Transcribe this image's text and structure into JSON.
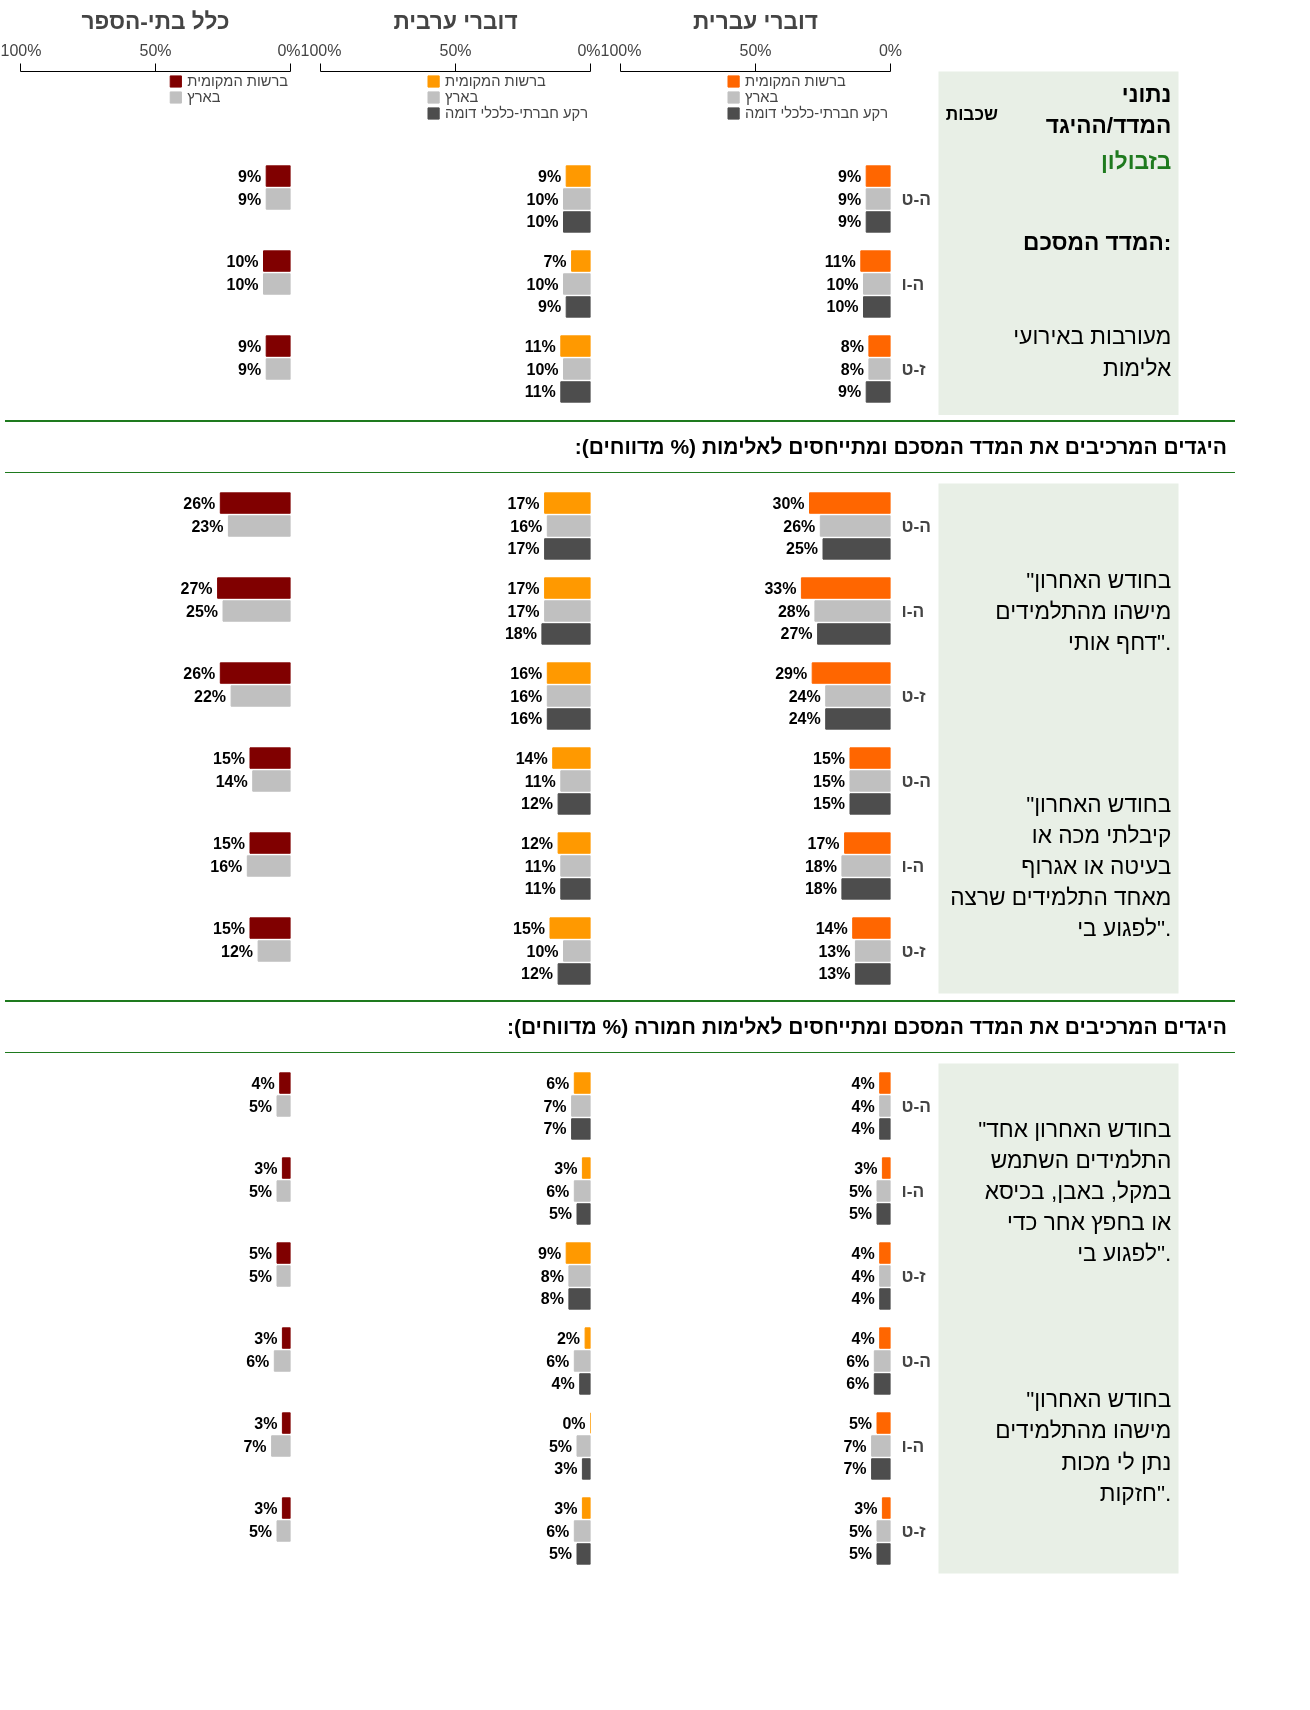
{
  "chart_data": [
    {
      "type": "bar",
      "orientation": "horizontal",
      "title": "דוברי עברית",
      "categories": [
        "ה-ט",
        "ה-ו",
        "ז-ט"
      ],
      "xlim": [
        100,
        0
      ],
      "xticks": [
        {
          "value": 100,
          "label": "100%"
        },
        {
          "value": 50,
          "label": "50%"
        },
        {
          "value": 0,
          "label": "0%"
        }
      ],
      "legend": "top",
      "annotations": [
        "נתוני המדד/ההיגד",
        "בזבולון",
        "שכבות",
        "המדד המסכם:",
        "מעורבות באירועי אלימות"
      ],
      "series": [
        {
          "name": "ברשות המקומית",
          "color": "#ff6600",
          "values": [
            9,
            11,
            8
          ],
          "value_labels": [
            "9%",
            "11%",
            "8%"
          ]
        },
        {
          "name": "בארץ",
          "color": "#c0c0c0",
          "values": [
            9,
            10,
            8
          ],
          "value_labels": [
            "9%",
            "10%",
            "8%"
          ]
        },
        {
          "name": "רקע חברתי-כלכלי דומה",
          "color": "#4d4d4d",
          "values": [
            9,
            10,
            9
          ],
          "value_labels": [
            "9%",
            "10%",
            "9%"
          ]
        }
      ]
    },
    {
      "type": "bar",
      "orientation": "horizontal",
      "title": "דוברי ערבית",
      "categories": [
        "ה-ט",
        "ה-ו",
        "ז-ט"
      ],
      "xlim": [
        100,
        0
      ],
      "xticks": [
        {
          "value": 100,
          "label": "100%"
        },
        {
          "value": 50,
          "label": "50%"
        },
        {
          "value": 0,
          "label": "0%"
        }
      ],
      "legend": "top",
      "tick_labels": "x",
      "series": [
        {
          "name": "ברשות המקומית",
          "color": "#ff9900",
          "values": [
            9,
            7,
            11
          ],
          "value_labels": [
            "9%",
            "7%",
            "11%"
          ]
        },
        {
          "name": "בארץ",
          "color": "#c0c0c0",
          "values": [
            10,
            10,
            10
          ],
          "value_labels": [
            "10%",
            "10%",
            "10%"
          ]
        },
        {
          "name": "רקע חברתי-כלכלי דומה",
          "color": "#4d4d4d",
          "values": [
            10,
            9,
            11
          ],
          "value_labels": [
            "10%",
            "9%",
            "11%"
          ]
        }
      ]
    },
    {
      "type": "bar",
      "orientation": "horizontal",
      "title": "כלל בתי-הספר",
      "categories": [
        "ה-ט",
        "ה-ו",
        "ז-ט"
      ],
      "xlim": [
        100,
        0
      ],
      "xticks": [
        {
          "value": 100,
          "label": "100%"
        },
        {
          "value": 50,
          "label": "50%"
        },
        {
          "value": 0,
          "label": "0%"
        }
      ],
      "legend": "top",
      "tick_labels": "x",
      "series": [
        {
          "name": "ברשות המקומית",
          "color": "#800000",
          "values": [
            9,
            10,
            9
          ],
          "value_labels": [
            "9%",
            "10%",
            "9%"
          ]
        },
        {
          "name": "בארץ",
          "color": "#c0c0c0",
          "values": [
            9,
            10,
            9
          ],
          "value_labels": [
            "9%",
            "10%",
            "9%"
          ]
        }
      ]
    },
    {
      "type": "bar",
      "orientation": "horizontal",
      "categories": [
        "ה-ט",
        "ה-ו",
        "ז-ט",
        "ה-ט",
        "ה-ו",
        "ז-ט"
      ],
      "xlim": [
        100,
        0
      ],
      "tick_labels": "y",
      "annotations": [
        "היגדים המרכיבים את המדד המסכם ומתייחסים לאלימות (% מדווחים):",
        "\"בחודש האחרון מישהו מהתלמידים דחף אותי\".",
        "\"בחודש האחרון קיבלתי מכה או בעיטה או אגרוף מאחד התלמידים שרצה לפגוע בי\"."
      ],
      "series": [
        {
          "color": "#ff6600",
          "values": [
            30,
            33,
            29,
            15,
            17,
            14
          ],
          "value_labels": [
            "30%",
            "33%",
            "29%",
            "15%",
            "17%",
            "14%"
          ]
        },
        {
          "color": "#c0c0c0",
          "values": [
            26,
            28,
            24,
            15,
            18,
            13
          ],
          "value_labels": [
            "26%",
            "28%",
            "24%",
            "15%",
            "18%",
            "13%"
          ]
        },
        {
          "color": "#4d4d4d",
          "values": [
            25,
            27,
            24,
            15,
            18,
            13
          ],
          "value_labels": [
            "25%",
            "27%",
            "24%",
            "15%",
            "18%",
            "13%"
          ]
        }
      ]
    },
    {
      "type": "bar",
      "orientation": "horizontal",
      "categories": [
        "ה-ט",
        "ה-ו",
        "ז-ט",
        "ה-ט",
        "ה-ו",
        "ז-ט"
      ],
      "xlim": [
        100,
        0
      ],
      "tick_labels": false,
      "series": [
        {
          "color": "#ff9900",
          "values": [
            17,
            17,
            16,
            14,
            12,
            15
          ],
          "value_labels": [
            "17%",
            "17%",
            "16%",
            "14%",
            "12%",
            "15%"
          ]
        },
        {
          "color": "#c0c0c0",
          "values": [
            16,
            17,
            16,
            11,
            11,
            10
          ],
          "value_labels": [
            "16%",
            "17%",
            "16%",
            "11%",
            "11%",
            "10%"
          ]
        },
        {
          "color": "#4d4d4d",
          "values": [
            17,
            18,
            16,
            12,
            11,
            12
          ],
          "value_labels": [
            "17%",
            "18%",
            "16%",
            "12%",
            "11%",
            "12%"
          ]
        }
      ]
    },
    {
      "type": "bar",
      "orientation": "horizontal",
      "categories": [
        "ה-ט",
        "ה-ו",
        "ז-ט",
        "ה-ט",
        "ה-ו",
        "ז-ט"
      ],
      "xlim": [
        100,
        0
      ],
      "tick_labels": false,
      "series": [
        {
          "color": "#800000",
          "values": [
            26,
            27,
            26,
            15,
            15,
            15
          ],
          "value_labels": [
            "26%",
            "27%",
            "26%",
            "15%",
            "15%",
            "15%"
          ]
        },
        {
          "color": "#c0c0c0",
          "values": [
            23,
            25,
            22,
            14,
            16,
            12
          ],
          "value_labels": [
            "23%",
            "25%",
            "22%",
            "14%",
            "16%",
            "12%"
          ]
        }
      ]
    },
    {
      "type": "bar",
      "orientation": "horizontal",
      "categories": [
        "ה-ט",
        "ה-ו",
        "ז-ט",
        "ה-ט",
        "ה-ו",
        "ז-ט"
      ],
      "xlim": [
        100,
        0
      ],
      "tick_labels": "y",
      "annotations": [
        "היגדים המרכיבים את המדד המסכם ומתייחסים לאלימות חמורה (% מדווחים):",
        "\"בחודש האחרון אחד התלמידים השתמש במקל, באבן, בכיסא או בחפץ אחר כדי לפגוע בי\".",
        "\"בחודש האחרון מישהו מהתלמידים נתן לי מכות חזקות\"."
      ],
      "series": [
        {
          "color": "#ff6600",
          "values": [
            4,
            3,
            4,
            4,
            5,
            3
          ],
          "value_labels": [
            "4%",
            "3%",
            "4%",
            "4%",
            "5%",
            "3%"
          ]
        },
        {
          "color": "#c0c0c0",
          "values": [
            4,
            5,
            4,
            6,
            7,
            5
          ],
          "value_labels": [
            "4%",
            "5%",
            "4%",
            "6%",
            "7%",
            "5%"
          ]
        },
        {
          "color": "#4d4d4d",
          "values": [
            4,
            5,
            4,
            6,
            7,
            5
          ],
          "value_labels": [
            "4%",
            "5%",
            "4%",
            "6%",
            "7%",
            "5%"
          ]
        }
      ]
    },
    {
      "type": "bar",
      "orientation": "horizontal",
      "categories": [
        "ה-ט",
        "ה-ו",
        "ז-ט",
        "ה-ט",
        "ה-ו",
        "ז-ט"
      ],
      "xlim": [
        100,
        0
      ],
      "tick_labels": false,
      "series": [
        {
          "color": "#ff9900",
          "values": [
            6,
            3,
            9,
            2,
            0,
            3
          ],
          "value_labels": [
            "6%",
            "3%",
            "9%",
            "2%",
            "0%",
            "3%"
          ]
        },
        {
          "color": "#c0c0c0",
          "values": [
            7,
            6,
            8,
            6,
            5,
            6
          ],
          "value_labels": [
            "7%",
            "6%",
            "8%",
            "6%",
            "5%",
            "6%"
          ]
        },
        {
          "color": "#4d4d4d",
          "values": [
            7,
            5,
            8,
            4,
            3,
            5
          ],
          "value_labels": [
            "7%",
            "5%",
            "8%",
            "4%",
            "3%",
            "5%"
          ]
        }
      ]
    },
    {
      "type": "bar",
      "orientation": "horizontal",
      "categories": [
        "ה-ט",
        "ה-ו",
        "ז-ט",
        "ה-ט",
        "ה-ו",
        "ז-ט"
      ],
      "xlim": [
        100,
        0
      ],
      "tick_labels": false,
      "series": [
        {
          "color": "#800000",
          "values": [
            4,
            3,
            5,
            3,
            3,
            3
          ],
          "value_labels": [
            "4%",
            "3%",
            "5%",
            "3%",
            "3%",
            "3%"
          ]
        },
        {
          "color": "#c0c0c0",
          "values": [
            5,
            5,
            5,
            6,
            7,
            5
          ],
          "value_labels": [
            "5%",
            "5%",
            "5%",
            "6%",
            "7%",
            "5%"
          ]
        }
      ]
    }
  ]
}
